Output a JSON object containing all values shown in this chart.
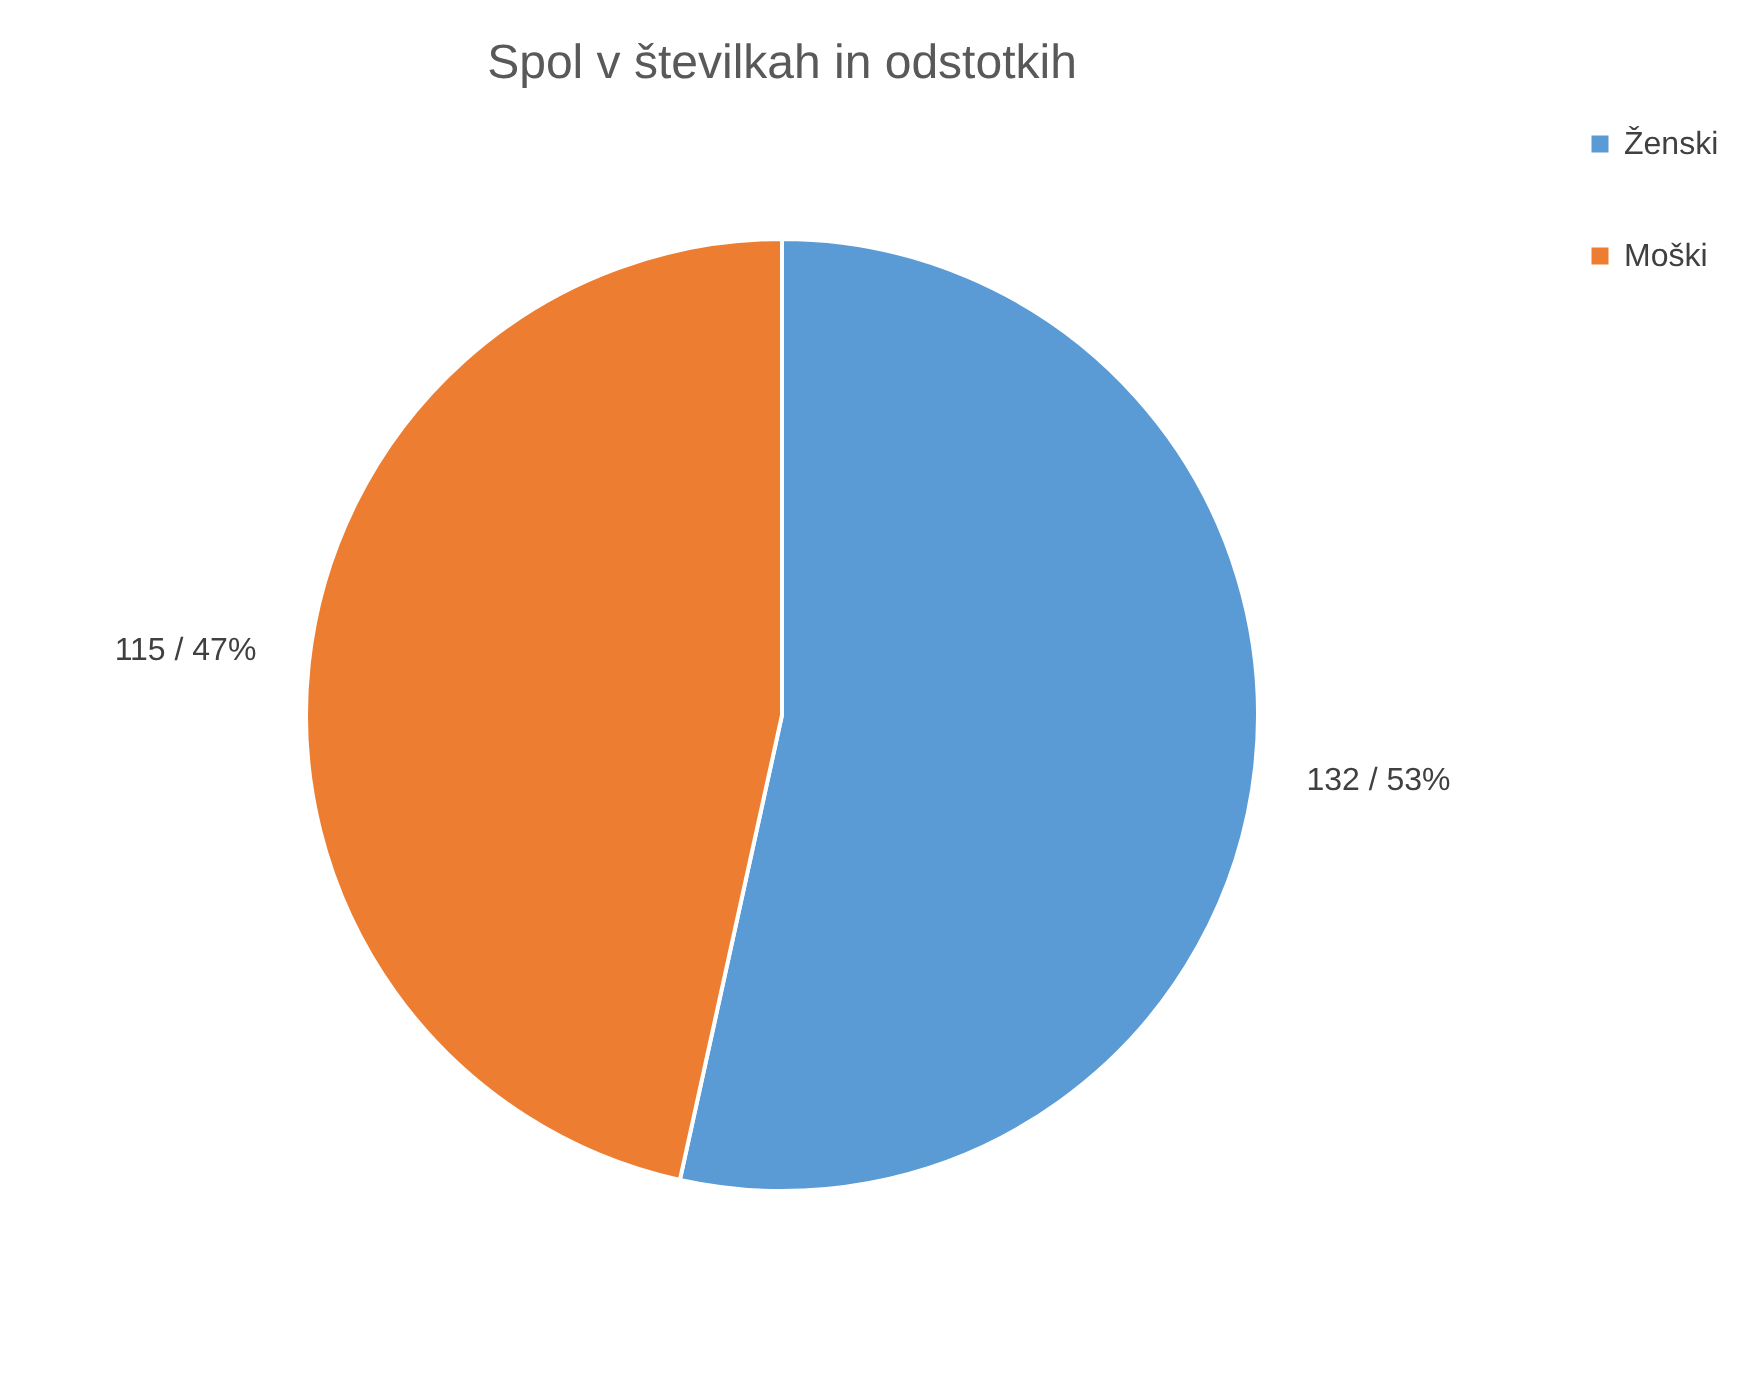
{
  "chart_data": {
    "type": "pie",
    "title": "Spol v številkah in odstotkih",
    "categories": [
      "Ženski",
      "Moški"
    ],
    "values": [
      132,
      115
    ],
    "colors": [
      "#5b9bd5",
      "#ed7d31"
    ],
    "value_labels": [
      "132 / 53%",
      "115 / 47%"
    ],
    "legend": "right"
  }
}
